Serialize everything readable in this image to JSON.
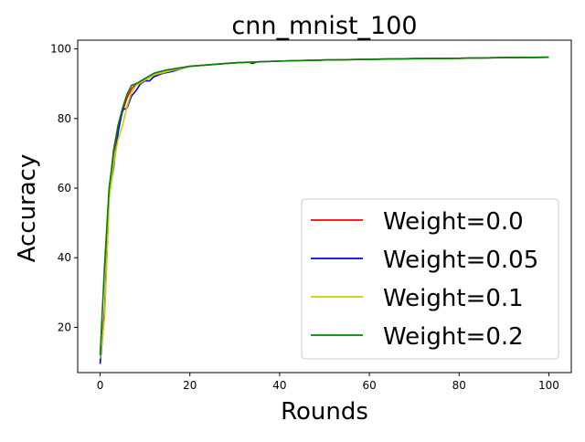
{
  "chart_data": {
    "type": "line",
    "title": "cnn_mnist_100",
    "xlabel": "Rounds",
    "ylabel": "Accuracy",
    "xlim": [
      -5,
      105
    ],
    "ylim": [
      7,
      102.5
    ],
    "xticks": [
      0,
      20,
      40,
      60,
      80,
      100
    ],
    "yticks": [
      20,
      40,
      60,
      80,
      100
    ],
    "grid": false,
    "legend_position": "lower-right",
    "series": [
      {
        "name": "Weight=0.0",
        "color": "#ff0000",
        "x": [
          0,
          1,
          2,
          3,
          4,
          5,
          6,
          7,
          8,
          10,
          12,
          15,
          20,
          25,
          30,
          40,
          50,
          60,
          70,
          80,
          90,
          100
        ],
        "y": [
          10.5,
          25,
          59,
          71,
          78,
          82,
          86,
          88.5,
          90,
          91,
          92.5,
          93.5,
          95,
          95.5,
          96,
          96.5,
          96.8,
          97,
          97.2,
          97.3,
          97.5,
          97.6
        ]
      },
      {
        "name": "Weight=0.05",
        "color": "#0000ff",
        "x": [
          0,
          1,
          2,
          3,
          4,
          5,
          6,
          7,
          8,
          9,
          10,
          11,
          12,
          14,
          16,
          18,
          20,
          25,
          30,
          33,
          34,
          35,
          40,
          50,
          60,
          70,
          80,
          90,
          100
        ],
        "y": [
          9.5,
          24,
          58,
          66,
          76,
          82.5,
          83,
          86.5,
          88,
          90,
          90.8,
          90.8,
          92,
          93,
          93.5,
          94.3,
          95,
          95.5,
          96,
          96.2,
          95.8,
          96.3,
          96.5,
          96.8,
          97,
          97.2,
          97.3,
          97.5,
          97.6
        ]
      },
      {
        "name": "Weight=0.1",
        "color": "#cccc00",
        "x": [
          0,
          1,
          2,
          3,
          4,
          5,
          6,
          7,
          8,
          10,
          12,
          15,
          20,
          25,
          30,
          40,
          50,
          60,
          70,
          80,
          90,
          100
        ],
        "y": [
          11,
          23,
          57,
          67,
          74,
          78,
          83.5,
          87.5,
          89.5,
          91,
          92.5,
          93.5,
          95,
          95.5,
          96,
          96.5,
          96.8,
          97,
          97.2,
          97.3,
          97.5,
          97.6
        ]
      },
      {
        "name": "Weight=0.2",
        "color": "#008000",
        "x": [
          0,
          1,
          2,
          3,
          4,
          5,
          6,
          7,
          8,
          10,
          12,
          15,
          20,
          25,
          30,
          40,
          50,
          60,
          70,
          80,
          90,
          100
        ],
        "y": [
          12,
          38,
          60,
          70,
          78,
          83,
          87,
          89.5,
          90,
          91.5,
          93,
          94,
          95,
          95.5,
          96,
          96.5,
          96.8,
          97,
          97.2,
          97.3,
          97.5,
          97.6
        ]
      }
    ]
  }
}
